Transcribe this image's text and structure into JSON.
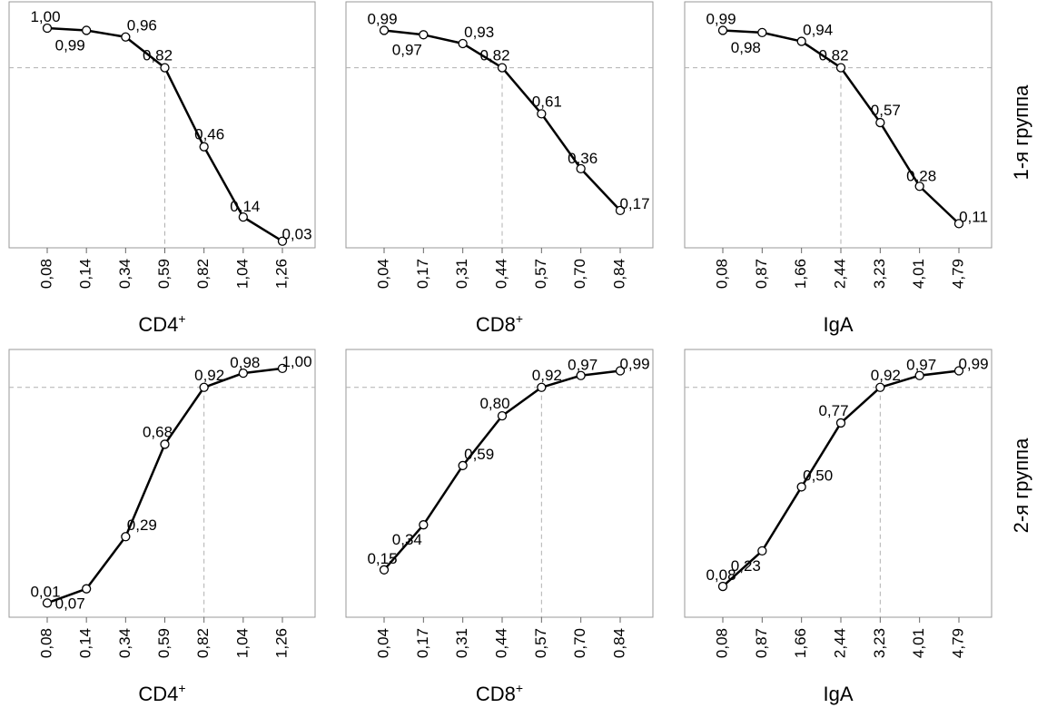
{
  "row_labels": [
    "1-я группа",
    "2-я группа"
  ],
  "chart_data": [
    {
      "type": "line",
      "row": "1-я группа",
      "xlabel": "CD4",
      "xlabel_sup": "+",
      "categories": [
        "0,08",
        "0,14",
        "0,34",
        "0,59",
        "0,82",
        "1,04",
        "1,26"
      ],
      "values": [
        1.0,
        0.99,
        0.96,
        0.82,
        0.46,
        0.14,
        0.03
      ],
      "labels": [
        "1,00",
        "0,99",
        "0,96",
        "0,82",
        "0,46",
        "0,14",
        "0,03"
      ],
      "ylim": [
        0.0,
        1.12
      ],
      "ref_index": 3,
      "ref_y": 0.82,
      "grid": false,
      "legend": "none"
    },
    {
      "type": "line",
      "row": "1-я группа",
      "xlabel": "CD8",
      "xlabel_sup": "+",
      "categories": [
        "0,04",
        "0,17",
        "0,31",
        "0,44",
        "0,57",
        "0,70",
        "0,84"
      ],
      "values": [
        0.99,
        0.97,
        0.93,
        0.82,
        0.61,
        0.36,
        0.17
      ],
      "labels": [
        "0,99",
        "0,97",
        "0,93",
        "0,82",
        "0,61",
        "0,36",
        "0,17"
      ],
      "ylim": [
        0.0,
        1.12
      ],
      "ref_index": 3,
      "ref_y": 0.82,
      "grid": false,
      "legend": "none"
    },
    {
      "type": "line",
      "row": "1-я группа",
      "xlabel": "IgA",
      "xlabel_sup": "",
      "categories": [
        "0,08",
        "0,87",
        "1,66",
        "2,44",
        "3,23",
        "4,01",
        "4,79"
      ],
      "values": [
        0.99,
        0.98,
        0.94,
        0.82,
        0.57,
        0.28,
        0.11
      ],
      "labels": [
        "0,99",
        "0,98",
        "0,94",
        "0,82",
        "0,57",
        "0,28",
        "0,11"
      ],
      "ylim": [
        0.0,
        1.12
      ],
      "ref_index": 3,
      "ref_y": 0.82,
      "grid": false,
      "legend": "none"
    },
    {
      "type": "line",
      "row": "2-я группа",
      "xlabel": "CD4",
      "xlabel_sup": "+",
      "categories": [
        "0,08",
        "0,14",
        "0,34",
        "0,59",
        "0,82",
        "1,04",
        "1,26"
      ],
      "values": [
        0.01,
        0.07,
        0.29,
        0.68,
        0.92,
        0.98,
        1.0
      ],
      "labels": [
        "0,01",
        "0,07",
        "0,29",
        "0,68",
        "0,92",
        "0,98",
        "1,00"
      ],
      "ylim": [
        -0.05,
        1.08
      ],
      "ref_index": 4,
      "ref_y": 0.92,
      "grid": false,
      "legend": "none"
    },
    {
      "type": "line",
      "row": "2-я группа",
      "xlabel": "CD8",
      "xlabel_sup": "+",
      "categories": [
        "0,04",
        "0,17",
        "0,31",
        "0,44",
        "0,57",
        "0,70",
        "0,84"
      ],
      "values": [
        0.15,
        0.34,
        0.59,
        0.8,
        0.92,
        0.97,
        0.99
      ],
      "labels": [
        "0,15",
        "0,34",
        "0,59",
        "0,80",
        "0,92",
        "0,97",
        "0,99"
      ],
      "ylim": [
        -0.05,
        1.08
      ],
      "ref_index": 4,
      "ref_y": 0.92,
      "grid": false,
      "legend": "none"
    },
    {
      "type": "line",
      "row": "2-я группа",
      "xlabel": "IgA",
      "xlabel_sup": "",
      "categories": [
        "0,08",
        "0,87",
        "1,66",
        "2,44",
        "3,23",
        "4,01",
        "4,79"
      ],
      "values": [
        0.08,
        0.23,
        0.5,
        0.77,
        0.92,
        0.97,
        0.99
      ],
      "labels": [
        "0,08",
        "0,23",
        "0,50",
        "0,77",
        "0,92",
        "0,97",
        "0,99"
      ],
      "ylim": [
        -0.05,
        1.08
      ],
      "ref_index": 4,
      "ref_y": 0.92,
      "grid": false,
      "legend": "none"
    }
  ]
}
